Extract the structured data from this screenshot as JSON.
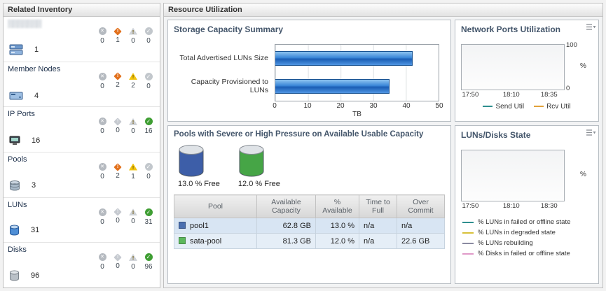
{
  "left_panel": {
    "title": "Related Inventory",
    "rows": [
      {
        "name": "▒▒▒▒▒▒▒",
        "count": "1",
        "statuses": [
          "0",
          "1",
          "0",
          "0"
        ]
      },
      {
        "name": "Member Nodes",
        "count": "4",
        "statuses": [
          "0",
          "2",
          "2",
          "0"
        ]
      },
      {
        "name": "IP Ports",
        "count": "16",
        "statuses": [
          "0",
          "0",
          "0",
          "16"
        ]
      },
      {
        "name": "Pools",
        "count": "3",
        "statuses": [
          "0",
          "2",
          "1",
          "0"
        ]
      },
      {
        "name": "LUNs",
        "count": "31",
        "statuses": [
          "0",
          "0",
          "0",
          "31"
        ]
      },
      {
        "name": "Disks",
        "count": "96",
        "statuses": [
          "0",
          "0",
          "0",
          "96"
        ]
      }
    ]
  },
  "right_panel": {
    "title": "Resource Utilization",
    "pools": {
      "gauges": [
        {
          "label": "13.0 % Free",
          "color": "#3d5ea8"
        },
        {
          "label": "12.0 % Free",
          "color": "#46a546"
        }
      ],
      "row_swatches": [
        "#4a6fb0",
        "#5cb85c"
      ]
    }
  },
  "chart_data": [
    {
      "type": "bar",
      "orientation": "horizontal",
      "title": "Storage Capacity Summary",
      "categories": [
        "Total Advertised LUNs Size",
        "Capacity Provisioned to LUNs"
      ],
      "values": [
        42,
        35
      ],
      "xlabel": "TB",
      "xlim": [
        0,
        50
      ],
      "xticks": [
        0,
        10,
        20,
        30,
        40,
        50
      ],
      "bar_color": "#2f7fd6",
      "grid": true
    },
    {
      "type": "line",
      "title": "Network Ports Utilization",
      "ylabel": "%",
      "ylim": [
        0,
        100
      ],
      "x_ticks": [
        "17:50",
        "18:10",
        "18:35"
      ],
      "legend_position": "bottom",
      "series": [
        {
          "name": "Send Util",
          "color": "#2e8f8f",
          "values": []
        },
        {
          "name": "Rcv Util",
          "color": "#e2a23b",
          "values": []
        }
      ],
      "note": "no data lines visible in plot"
    },
    {
      "type": "line",
      "title": "LUNs/Disks State",
      "ylabel": "%",
      "x_ticks": [
        "17:50",
        "18:10",
        "18:30"
      ],
      "legend_position": "bottom",
      "series": [
        {
          "name": "% LUNs in failed or offline state",
          "color": "#2e8f8f",
          "values": []
        },
        {
          "name": "% LUNs in degraded state",
          "color": "#d8c13a",
          "values": []
        },
        {
          "name": "% LUNs rebuilding",
          "color": "#8a8aa0",
          "values": []
        },
        {
          "name": "% Disks in failed or offline state",
          "color": "#e09ac8",
          "values": []
        }
      ],
      "note": "no data lines visible in plot"
    },
    {
      "type": "table",
      "title": "Pools with Severe or High Pressure on Available Usable Capacity",
      "columns": [
        "Pool",
        "Available Capacity",
        "% Available",
        "Time to Full",
        "Over Commit"
      ],
      "rows": [
        [
          "pool1",
          "62.8 GB",
          "13.0 %",
          "n/a",
          "n/a"
        ],
        [
          "sata-pool",
          "81.3 GB",
          "12.0 %",
          "n/a",
          "22.6 GB"
        ]
      ]
    }
  ]
}
